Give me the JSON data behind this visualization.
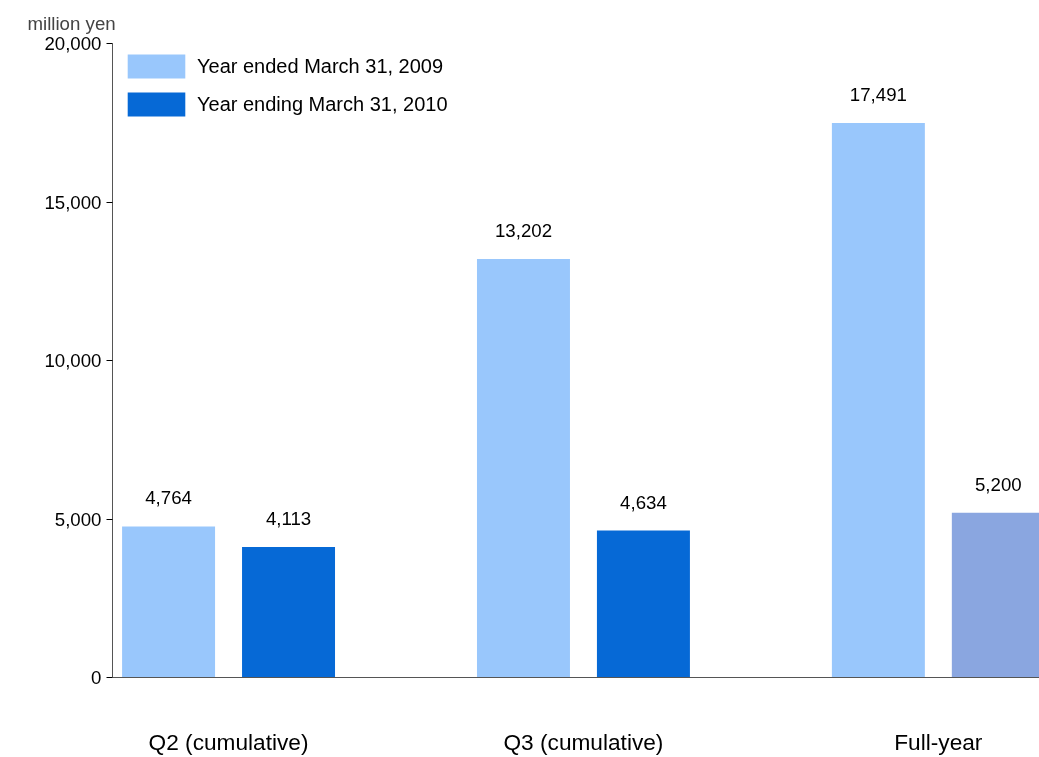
{
  "chart_data": {
    "type": "bar",
    "ylabel": "million yen",
    "categories": [
      "Q2 (cumulative)",
      "Q3 (cumulative)",
      "Full-year"
    ],
    "series": [
      {
        "name": "Year ended March 31, 2009",
        "color": "#99c7fc",
        "values": [
          4764,
          13202,
          17491
        ],
        "value_labels": [
          "4,764",
          "13,202",
          "17,491"
        ]
      },
      {
        "name": "Year ending March 31, 2010",
        "colors": [
          "#0669d6",
          "#0669d6",
          "#8aa6e0"
        ],
        "color": "#0669d6",
        "values": [
          4113,
          4634,
          5200
        ],
        "value_labels": [
          "4,113",
          "4,634",
          "5,200"
        ]
      }
    ],
    "ylim": [
      0,
      20000
    ],
    "yticks": [
      {
        "value": 0,
        "label": "0"
      },
      {
        "value": 5000,
        "label": "5,000"
      },
      {
        "value": 10000,
        "label": "10,000"
      },
      {
        "value": 15000,
        "label": "15,000"
      },
      {
        "value": 20000,
        "label": "20,000"
      }
    ],
    "grid": false,
    "legend": "top left"
  }
}
